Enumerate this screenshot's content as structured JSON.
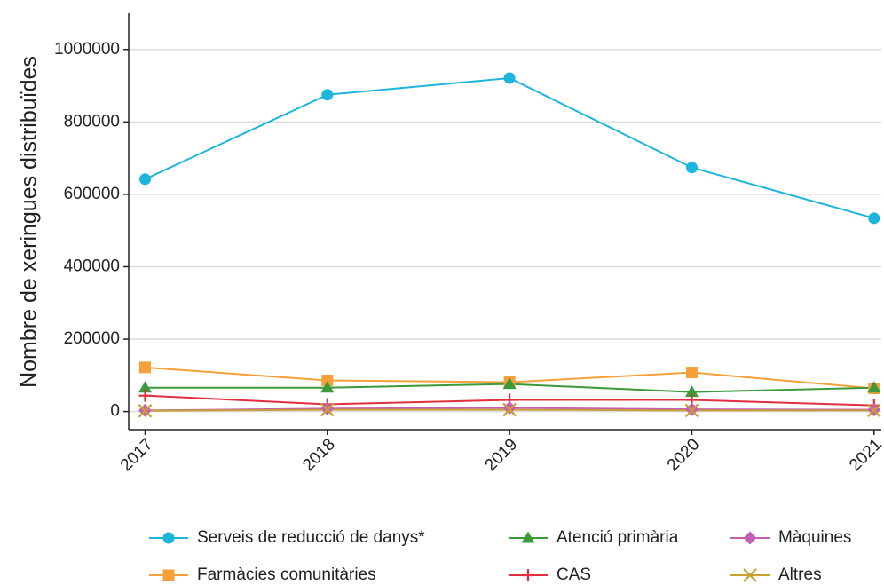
{
  "chart_data": {
    "type": "line",
    "y_label": "Nombre de xeringues distribuïdes",
    "x": [
      2017,
      2018,
      2019,
      2020,
      2021
    ],
    "xlim": [
      2016.91,
      2021.04
    ],
    "xticks": [
      2017,
      2018,
      2019,
      2020,
      2021
    ],
    "ylim": [
      -50000,
      1100000
    ],
    "yticks": [
      0,
      200000,
      400000,
      600000,
      800000,
      1000000
    ],
    "grid": true,
    "legend": "bottom",
    "series": [
      {
        "name": "Serveis de reducció de danys*",
        "color": "#1db5dc",
        "marker": "circle",
        "values": [
          642000,
          875000,
          921000,
          674000,
          534000
        ]
      },
      {
        "name": "Farmàcies comunitàries",
        "color": "#f7a03a",
        "marker": "square",
        "values": [
          122000,
          86000,
          81000,
          108000,
          64000
        ]
      },
      {
        "name": "Atenció primària",
        "color": "#3b9a3a",
        "marker": "triangle",
        "values": [
          66000,
          66000,
          76000,
          54000,
          66000
        ]
      },
      {
        "name": "CAS",
        "color": "#e0303f",
        "marker": "plus",
        "values": [
          44000,
          20000,
          32000,
          32000,
          17000
        ]
      },
      {
        "name": "Màquines",
        "color": "#c45fb7",
        "marker": "diamond",
        "values": [
          3000,
          8000,
          10000,
          6000,
          5000
        ]
      },
      {
        "name": "Altres",
        "color": "#c8a032",
        "marker": "x",
        "values": [
          2000,
          5000,
          5000,
          3000,
          3000
        ]
      }
    ]
  }
}
